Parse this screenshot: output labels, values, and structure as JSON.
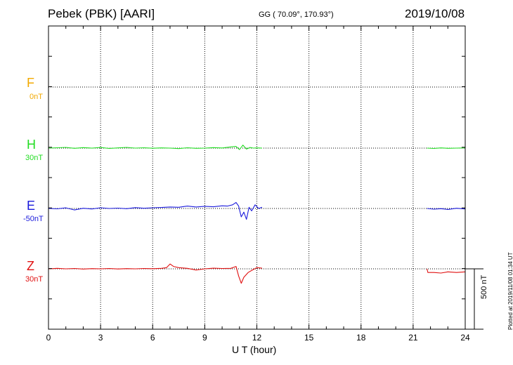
{
  "header": {
    "station": "Pebek (PBK)  [AARI]",
    "coords": "GG ( 70.09°, 170.93°)",
    "date": "2019/10/08"
  },
  "components": [
    {
      "letter": "F",
      "offset": "0nT",
      "color": "#f2a900"
    },
    {
      "letter": "H",
      "offset": "30nT",
      "color": "#22dd22"
    },
    {
      "letter": "E",
      "offset": "-50nT",
      "color": "#1a1adc"
    },
    {
      "letter": "Z",
      "offset": "30nT",
      "color": "#e01010"
    }
  ],
  "scale_label": "500 nT",
  "plotted_note": "Plotted at 2019/11/08 01:34 UT",
  "chart_data": {
    "type": "line",
    "xlabel": "U T (hour)",
    "ylabel": "",
    "x_ticks": [
      "0",
      "3",
      "6",
      "9",
      "12",
      "15",
      "18",
      "21",
      "24"
    ],
    "xlim": [
      0,
      24
    ],
    "y_unit": "nT",
    "scale_bar_nT": 500,
    "grid": true,
    "series": [
      {
        "name": "F",
        "color": "#f2a900",
        "segments": []
      },
      {
        "name": "H",
        "color": "#22dd22",
        "segments": [
          {
            "x": [
              0,
              0.5,
              1,
              1.5,
              2,
              2.5,
              3,
              3.5,
              4,
              4.5,
              5,
              5.5,
              6,
              6.5,
              7,
              7.5,
              8,
              8.5,
              9,
              9.5,
              10,
              10.5,
              10.8,
              11,
              11.2,
              11.4,
              11.6,
              11.8,
              12,
              12.3
            ],
            "y": [
              0,
              3,
              6,
              -2,
              4,
              0,
              5,
              -3,
              2,
              6,
              0,
              3,
              -1,
              2,
              0,
              -4,
              3,
              -2,
              0,
              4,
              1,
              10,
              14,
              -12,
              25,
              -8,
              5,
              0,
              2,
              0
            ]
          },
          {
            "x": [
              21.8,
              22.2,
              22.6,
              23,
              23.5,
              24
            ],
            "y": [
              0,
              -3,
              2,
              -2,
              0,
              2
            ]
          }
        ]
      },
      {
        "name": "E",
        "color": "#1a1adc",
        "segments": [
          {
            "x": [
              0,
              0.5,
              1,
              1.5,
              2,
              2.5,
              3,
              3.5,
              4,
              4.5,
              5,
              5.5,
              6,
              6.5,
              7,
              7.5,
              8,
              8.5,
              9,
              9.5,
              10,
              10.3,
              10.6,
              10.8,
              10.95,
              11.1,
              11.25,
              11.4,
              11.55,
              11.7,
              11.9,
              12.1,
              12.3
            ],
            "y": [
              0,
              -3,
              5,
              -12,
              2,
              -4,
              6,
              0,
              3,
              -2,
              7,
              2,
              6,
              8,
              12,
              10,
              20,
              12,
              18,
              14,
              22,
              20,
              30,
              50,
              20,
              -70,
              -30,
              -90,
              10,
              -20,
              30,
              0,
              10
            ]
          },
          {
            "x": [
              21.8,
              22.2,
              22.6,
              23,
              23.5,
              24
            ],
            "y": [
              0,
              -6,
              -2,
              -8,
              2,
              -4
            ]
          }
        ]
      },
      {
        "name": "Z",
        "color": "#e01010",
        "segments": [
          {
            "x": [
              0,
              0.5,
              1,
              1.5,
              2,
              2.5,
              3,
              3.5,
              4,
              4.5,
              5,
              5.5,
              6,
              6.5,
              6.8,
              7,
              7.2,
              7.5,
              8,
              8.5,
              9,
              9.5,
              10,
              10.5,
              10.8,
              10.95,
              11.1,
              11.25,
              11.5,
              11.8,
              12,
              12.3
            ],
            "y": [
              0,
              4,
              0,
              3,
              -2,
              2,
              0,
              3,
              -1,
              2,
              0,
              3,
              1,
              4,
              10,
              40,
              20,
              10,
              4,
              -10,
              0,
              5,
              3,
              4,
              20,
              -60,
              -120,
              -70,
              -30,
              -5,
              10,
              5
            ]
          },
          {
            "x": [
              21.8,
              21.85,
              22.2,
              22.6,
              23,
              23.5,
              24
            ],
            "y": [
              0,
              -30,
              -30,
              -35,
              -25,
              -30,
              -25
            ]
          }
        ]
      }
    ]
  }
}
